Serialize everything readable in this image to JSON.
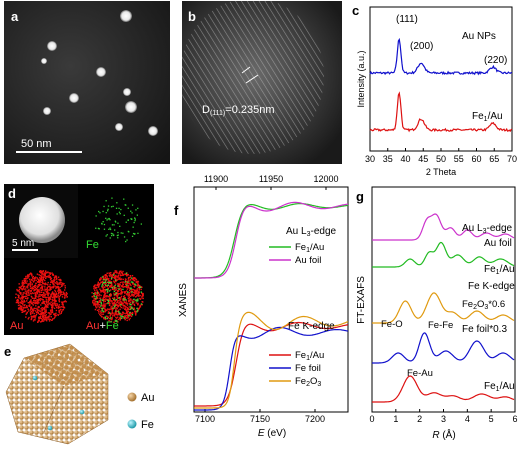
{
  "panels": {
    "a": {
      "label": "a",
      "scalebar": "50 nm"
    },
    "b": {
      "label": "b",
      "spacing_prefix": "D",
      "spacing_sub": "(111)",
      "spacing_value": "=0.235nm"
    },
    "c": {
      "label": "c",
      "ylabel": "Intensity (a.u.)",
      "xlabel": "2 Theta",
      "peak_111": "(111)",
      "peak_200": "(200)",
      "peak_220": "(220)",
      "series_top": "Au NPs",
      "series_bottom_main": "Fe",
      "series_bottom_sub": "1",
      "series_bottom_tail": "/Au",
      "xticks": [
        "30",
        "35",
        "40",
        "45",
        "50",
        "55",
        "60",
        "65",
        "70"
      ]
    },
    "d": {
      "label": "d",
      "scalebar": "5 nm",
      "map_fe": "Fe",
      "map_au": "Au",
      "map_au_fe_au": "Au",
      "map_au_fe_plus": "+",
      "map_au_fe_fe": "Fe"
    },
    "e": {
      "label": "e",
      "legend_au": "Au",
      "legend_fe": "Fe"
    },
    "f": {
      "label": "f",
      "ylabel": "XANES",
      "xlabel_var": "E",
      "xlabel_unit": " (eV)",
      "top_ticks": [
        "11900",
        "11950",
        "12000"
      ],
      "bottom_ticks": [
        "7100",
        "7150",
        "7200"
      ],
      "edge_au": "Au L",
      "edge_au_sub": "3",
      "edge_au_tail": "-edge",
      "edge_fe": "Fe K-edge",
      "au_legend": [
        {
          "main": "Fe",
          "sub": "1",
          "tail": "/Au",
          "color": "#22bb22"
        },
        {
          "main": "Au foil",
          "sub": "",
          "tail": "",
          "color": "#cc33cc"
        }
      ],
      "fe_legend": [
        {
          "main": "Fe",
          "sub": "1",
          "tail": "/Au",
          "color": "#dd1111"
        },
        {
          "main": "Fe foil",
          "sub": "",
          "tail": "",
          "color": "#1111cc"
        },
        {
          "main": "Fe",
          "sub": "2",
          "tail": "O",
          "sub2": "3",
          "color": "#e09a10"
        }
      ]
    },
    "g": {
      "label": "g",
      "ylabel": "FT-EXAFS",
      "xlabel_var": "R",
      "xlabel_unit": " (Å)",
      "xticks": [
        "0",
        "1",
        "2",
        "3",
        "4",
        "5",
        "6"
      ],
      "edge_au": "Au L",
      "edge_au_sub": "3",
      "edge_au_tail": "-edge",
      "edge_fe": "Fe K-edge",
      "lbl_au_foil": "Au foil",
      "lbl_fe1au_top_main": "Fe",
      "lbl_fe1au_top_sub": "1",
      "lbl_fe1au_top_tail": "/Au",
      "lbl_fe2o3_main": "Fe",
      "lbl_fe2o3_sub": "2",
      "lbl_fe2o3_mid": "O",
      "lbl_fe2o3_sub2": "3",
      "lbl_fe2o3_tail": "*0.6",
      "lbl_fe_foil": "Fe foil*0.3",
      "lbl_fe1au_bot_main": "Fe",
      "lbl_fe1au_bot_sub": "1",
      "lbl_fe1au_bot_tail": "/Au",
      "ann_feo": "Fe-O",
      "ann_fefe": "Fe-Fe",
      "ann_feau": "Fe-Au"
    }
  }
}
